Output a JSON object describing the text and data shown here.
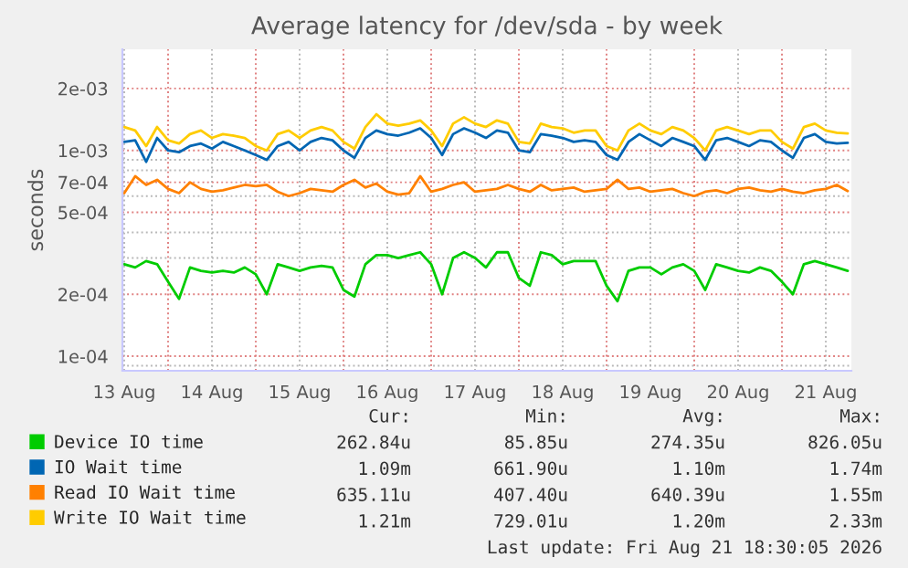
{
  "chart_data": {
    "type": "line",
    "title": "Average latency for /dev/sda - by week",
    "ylabel": "seconds",
    "log": true,
    "grid": true,
    "legend": "bottom",
    "xlim": [
      "2026-08-13T11:30",
      "2026-08-21T19:00"
    ],
    "xticks": [
      {
        "value": "2026-08-13T12:00",
        "label": "13 Aug"
      },
      {
        "value": "2026-08-14T00:00",
        "label": null
      },
      {
        "value": "2026-08-14T12:00",
        "label": "14 Aug"
      },
      {
        "value": "2026-08-15T00:00",
        "label": null
      },
      {
        "value": "2026-08-15T12:00",
        "label": "15 Aug"
      },
      {
        "value": "2026-08-16T00:00",
        "label": null
      },
      {
        "value": "2026-08-16T12:00",
        "label": "16 Aug"
      },
      {
        "value": "2026-08-17T00:00",
        "label": null
      },
      {
        "value": "2026-08-17T12:00",
        "label": "17 Aug"
      },
      {
        "value": "2026-08-18T00:00",
        "label": null
      },
      {
        "value": "2026-08-18T12:00",
        "label": "18 Aug"
      },
      {
        "value": "2026-08-19T00:00",
        "label": null
      },
      {
        "value": "2026-08-19T12:00",
        "label": "19 Aug"
      },
      {
        "value": "2026-08-20T00:00",
        "label": null
      },
      {
        "value": "2026-08-20T12:00",
        "label": "20 Aug"
      },
      {
        "value": "2026-08-21T00:00",
        "label": null
      },
      {
        "value": "2026-08-21T12:00",
        "label": "21 Aug"
      }
    ],
    "ylim": [
      8.5e-05,
      0.0031
    ],
    "yticks": [
      {
        "value": 9e-05,
        "label": null
      },
      {
        "value": 0.0001,
        "label": "1e-04"
      },
      {
        "value": 0.0002,
        "label": "2e-04"
      },
      {
        "value": 0.0003,
        "label": null
      },
      {
        "value": 0.0004,
        "label": null
      },
      {
        "value": 0.0005,
        "label": "5e-04"
      },
      {
        "value": 0.0006,
        "label": null
      },
      {
        "value": 0.0007,
        "label": "7e-04"
      },
      {
        "value": 0.0008,
        "label": null
      },
      {
        "value": 0.0009,
        "label": null
      },
      {
        "value": 0.001,
        "label": "1e-03"
      },
      {
        "value": 0.002,
        "label": "2e-03"
      }
    ],
    "x": [
      "2026-08-13T12:00",
      "2026-08-13T15:00",
      "2026-08-13T18:00",
      "2026-08-13T21:00",
      "2026-08-14T00:00",
      "2026-08-14T03:00",
      "2026-08-14T06:00",
      "2026-08-14T09:00",
      "2026-08-14T12:00",
      "2026-08-14T15:00",
      "2026-08-14T18:00",
      "2026-08-14T21:00",
      "2026-08-15T00:00",
      "2026-08-15T03:00",
      "2026-08-15T06:00",
      "2026-08-15T09:00",
      "2026-08-15T12:00",
      "2026-08-15T15:00",
      "2026-08-15T18:00",
      "2026-08-15T21:00",
      "2026-08-16T00:00",
      "2026-08-16T03:00",
      "2026-08-16T06:00",
      "2026-08-16T09:00",
      "2026-08-16T12:00",
      "2026-08-16T15:00",
      "2026-08-16T18:00",
      "2026-08-16T21:00",
      "2026-08-17T00:00",
      "2026-08-17T03:00",
      "2026-08-17T06:00",
      "2026-08-17T09:00",
      "2026-08-17T12:00",
      "2026-08-17T15:00",
      "2026-08-17T18:00",
      "2026-08-17T21:00",
      "2026-08-18T00:00",
      "2026-08-18T03:00",
      "2026-08-18T06:00",
      "2026-08-18T09:00",
      "2026-08-18T12:00",
      "2026-08-18T15:00",
      "2026-08-18T18:00",
      "2026-08-18T21:00",
      "2026-08-19T00:00",
      "2026-08-19T03:00",
      "2026-08-19T06:00",
      "2026-08-19T09:00",
      "2026-08-19T12:00",
      "2026-08-19T15:00",
      "2026-08-19T18:00",
      "2026-08-19T21:00",
      "2026-08-20T00:00",
      "2026-08-20T03:00",
      "2026-08-20T06:00",
      "2026-08-20T09:00",
      "2026-08-20T12:00",
      "2026-08-20T15:00",
      "2026-08-20T18:00",
      "2026-08-20T21:00",
      "2026-08-21T00:00",
      "2026-08-21T03:00",
      "2026-08-21T06:00",
      "2026-08-21T09:00",
      "2026-08-21T12:00",
      "2026-08-21T15:00",
      "2026-08-21T18:00"
    ],
    "series": [
      {
        "name": "Device IO time",
        "color": "#00cc00",
        "values": [
          0.00028,
          0.00027,
          0.00029,
          0.00028,
          0.00023,
          0.00019,
          0.00027,
          0.00026,
          0.000255,
          0.00026,
          0.000255,
          0.00027,
          0.00025,
          0.0002,
          0.00028,
          0.00027,
          0.00026,
          0.00027,
          0.000275,
          0.00027,
          0.00021,
          0.000195,
          0.00028,
          0.00031,
          0.00031,
          0.0003,
          0.00031,
          0.00032,
          0.00028,
          0.0002,
          0.0003,
          0.00032,
          0.0003,
          0.00027,
          0.00032,
          0.00032,
          0.00024,
          0.00022,
          0.00032,
          0.00031,
          0.00028,
          0.00029,
          0.00029,
          0.00029,
          0.00022,
          0.000185,
          0.00026,
          0.00027,
          0.00027,
          0.00025,
          0.00027,
          0.00028,
          0.00026,
          0.00021,
          0.00028,
          0.00027,
          0.00026,
          0.000255,
          0.00027,
          0.00026,
          0.00023,
          0.0002,
          0.00028,
          0.00029,
          0.00028,
          0.00027,
          0.00026
        ]
      },
      {
        "name": "IO Wait time",
        "color": "#0066b3",
        "values": [
          0.0011,
          0.00112,
          0.00088,
          0.00115,
          0.001,
          0.00098,
          0.00105,
          0.00108,
          0.00102,
          0.0011,
          0.00105,
          0.001,
          0.00095,
          0.0009,
          0.00105,
          0.0011,
          0.001,
          0.0011,
          0.00115,
          0.00112,
          0.001,
          0.00092,
          0.00115,
          0.00125,
          0.0012,
          0.00118,
          0.00122,
          0.00128,
          0.00115,
          0.00095,
          0.0012,
          0.00128,
          0.00122,
          0.00115,
          0.00125,
          0.00122,
          0.001,
          0.00098,
          0.0012,
          0.00118,
          0.00115,
          0.0011,
          0.00112,
          0.0011,
          0.00095,
          0.0009,
          0.0011,
          0.0012,
          0.00112,
          0.00105,
          0.00115,
          0.0011,
          0.00105,
          0.0009,
          0.00112,
          0.00115,
          0.0011,
          0.00105,
          0.00112,
          0.0011,
          0.001,
          0.00092,
          0.00115,
          0.0012,
          0.0011,
          0.00108,
          0.00109
        ]
      },
      {
        "name": "Read IO Wait time",
        "color": "#ff8000",
        "values": [
          0.00062,
          0.00075,
          0.00068,
          0.00072,
          0.00065,
          0.00062,
          0.0007,
          0.00065,
          0.00063,
          0.00064,
          0.00066,
          0.00068,
          0.00067,
          0.00068,
          0.00063,
          0.0006,
          0.00062,
          0.00065,
          0.00064,
          0.00063,
          0.00068,
          0.00072,
          0.00066,
          0.00069,
          0.00063,
          0.00061,
          0.00062,
          0.00075,
          0.00063,
          0.00065,
          0.00068,
          0.0007,
          0.00063,
          0.00064,
          0.00065,
          0.00068,
          0.00065,
          0.00063,
          0.00068,
          0.00064,
          0.00065,
          0.00066,
          0.00063,
          0.00064,
          0.00065,
          0.00072,
          0.00065,
          0.00066,
          0.00063,
          0.00064,
          0.00065,
          0.00062,
          0.0006,
          0.00063,
          0.00064,
          0.00062,
          0.00065,
          0.00066,
          0.00064,
          0.00063,
          0.00065,
          0.00063,
          0.00062,
          0.00064,
          0.00065,
          0.00068,
          0.000635
        ]
      },
      {
        "name": "Write IO Wait time",
        "color": "#ffcc00",
        "values": [
          0.0013,
          0.00125,
          0.00105,
          0.0013,
          0.00112,
          0.00108,
          0.0012,
          0.00125,
          0.00115,
          0.0012,
          0.00118,
          0.00115,
          0.00105,
          0.001,
          0.0012,
          0.00125,
          0.00115,
          0.00125,
          0.0013,
          0.00125,
          0.0011,
          0.00102,
          0.0013,
          0.0015,
          0.00135,
          0.00132,
          0.00135,
          0.0014,
          0.00125,
          0.00105,
          0.00135,
          0.00145,
          0.00135,
          0.0013,
          0.0014,
          0.00135,
          0.0011,
          0.00108,
          0.00135,
          0.0013,
          0.00128,
          0.00122,
          0.00125,
          0.00125,
          0.00105,
          0.001,
          0.00125,
          0.00135,
          0.00125,
          0.0012,
          0.0013,
          0.00125,
          0.00115,
          0.001,
          0.00125,
          0.0013,
          0.00125,
          0.0012,
          0.00125,
          0.00125,
          0.0011,
          0.00102,
          0.0013,
          0.00135,
          0.00125,
          0.00122,
          0.00121
        ]
      }
    ],
    "annotations": [
      "Cur:",
      "Min:",
      "Avg:",
      "Max:",
      "262.84u",
      "85.85u",
      "274.35u",
      "826.05u",
      "1.09m",
      "661.90u",
      "1.10m",
      "1.74m",
      "635.11u",
      "407.40u",
      "640.39u",
      "1.55m",
      "1.21m",
      "729.01u",
      "1.20m",
      "2.33m",
      "Last update: Fri Aug 21 18:30:05 2026"
    ]
  }
}
